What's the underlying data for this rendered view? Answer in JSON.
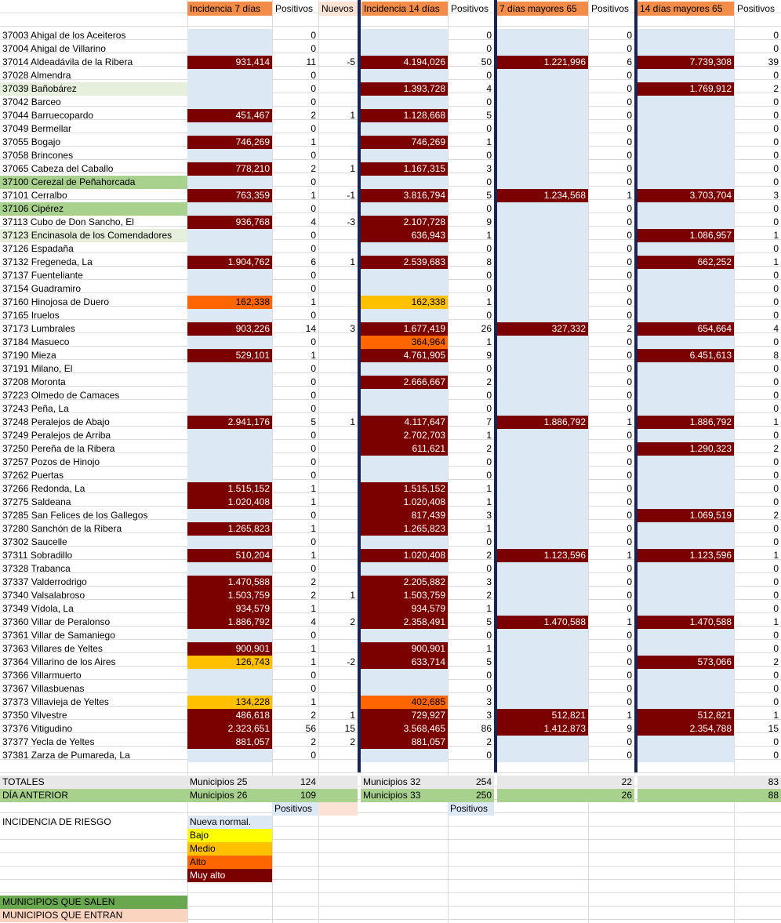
{
  "columns": {
    "inc7": "Incidencia 7 días",
    "pos7": "Positivos",
    "nuevos": "Nuevos",
    "inc14": "Incidencia 14 días",
    "pos14": "Positivos",
    "inc7m65": "7 días mayores 65",
    "pos7m65": "Positivos",
    "inc14m65": "14 días mayores 65",
    "pos14m65": "Positivos"
  },
  "colors": {
    "nueva": "#dce9f5",
    "bajo": "#ffff00",
    "medio": "#ffc000",
    "alto": "#ff6600",
    "muy_alto": "#7b0000",
    "salen": "#6aa84f",
    "entran": "#fbd4c0"
  },
  "rows": [
    {
      "name": "37003 Ahigal de los Aceiteros",
      "hl": "",
      "i7": "",
      "i7c": "nueva",
      "p7": "0",
      "nv": "",
      "i14": "",
      "i14c": "nueva",
      "p14": "0",
      "m7": "",
      "m7c": "nueva",
      "mp7": "0",
      "m14": "",
      "m14c": "nueva",
      "mp14": "0"
    },
    {
      "name": "37004 Ahigal de Villarino",
      "hl": "",
      "i7": "",
      "i7c": "nueva",
      "p7": "0",
      "nv": "",
      "i14": "",
      "i14c": "nueva",
      "p14": "0",
      "m7": "",
      "m7c": "nueva",
      "mp7": "0",
      "m14": "",
      "m14c": "nueva",
      "mp14": "0"
    },
    {
      "name": "37014 Aldeadávila de la Ribera",
      "hl": "",
      "i7": "931,414",
      "i7c": "muy_alto",
      "p7": "11",
      "nv": "-5",
      "i14": "4.194,026",
      "i14c": "muy_alto",
      "p14": "50",
      "m7": "1.221,996",
      "m7c": "muy_alto",
      "mp7": "6",
      "m14": "7.739,308",
      "m14c": "muy_alto",
      "mp14": "39"
    },
    {
      "name": "37028 Almendra",
      "hl": "",
      "i7": "",
      "i7c": "nueva",
      "p7": "0",
      "nv": "",
      "i14": "",
      "i14c": "nueva",
      "p14": "0",
      "m7": "",
      "m7c": "nueva",
      "mp7": "0",
      "m14": "",
      "m14c": "nueva",
      "mp14": "0"
    },
    {
      "name": "37039 Bañobárez",
      "hl": "lg",
      "i7": "",
      "i7c": "nueva",
      "p7": "0",
      "nv": "",
      "i14": "1.393,728",
      "i14c": "muy_alto",
      "p14": "4",
      "m7": "",
      "m7c": "nueva",
      "mp7": "0",
      "m14": "1.769,912",
      "m14c": "muy_alto",
      "mp14": "2"
    },
    {
      "name": "37042 Barceo",
      "hl": "",
      "i7": "",
      "i7c": "nueva",
      "p7": "0",
      "nv": "",
      "i14": "",
      "i14c": "nueva",
      "p14": "0",
      "m7": "",
      "m7c": "nueva",
      "mp7": "0",
      "m14": "",
      "m14c": "nueva",
      "mp14": "0"
    },
    {
      "name": "37044 Barruecopardo",
      "hl": "",
      "i7": "451,467",
      "i7c": "muy_alto",
      "p7": "2",
      "nv": "1",
      "i14": "1.128,668",
      "i14c": "muy_alto",
      "p14": "5",
      "m7": "",
      "m7c": "nueva",
      "mp7": "0",
      "m14": "",
      "m14c": "nueva",
      "mp14": "0"
    },
    {
      "name": "37049 Bermellar",
      "hl": "",
      "i7": "",
      "i7c": "nueva",
      "p7": "0",
      "nv": "",
      "i14": "",
      "i14c": "nueva",
      "p14": "0",
      "m7": "",
      "m7c": "nueva",
      "mp7": "0",
      "m14": "",
      "m14c": "nueva",
      "mp14": "0"
    },
    {
      "name": "37055 Bogajo",
      "hl": "",
      "i7": "746,269",
      "i7c": "muy_alto",
      "p7": "1",
      "nv": "",
      "i14": "746,269",
      "i14c": "muy_alto",
      "p14": "1",
      "m7": "",
      "m7c": "nueva",
      "mp7": "0",
      "m14": "",
      "m14c": "nueva",
      "mp14": "0"
    },
    {
      "name": "37058 Brincones",
      "hl": "",
      "i7": "",
      "i7c": "nueva",
      "p7": "0",
      "nv": "",
      "i14": "",
      "i14c": "nueva",
      "p14": "0",
      "m7": "",
      "m7c": "nueva",
      "mp7": "0",
      "m14": "",
      "m14c": "nueva",
      "mp14": "0"
    },
    {
      "name": "37065 Cabeza del Caballo",
      "hl": "",
      "i7": "778,210",
      "i7c": "muy_alto",
      "p7": "2",
      "nv": "1",
      "i14": "1.167,315",
      "i14c": "muy_alto",
      "p14": "3",
      "m7": "",
      "m7c": "nueva",
      "mp7": "0",
      "m14": "",
      "m14c": "nueva",
      "mp14": "0"
    },
    {
      "name": "37100 Cerezal de Peñahorcada",
      "hl": "gg",
      "i7": "",
      "i7c": "nueva",
      "p7": "0",
      "nv": "",
      "i14": "",
      "i14c": "nueva",
      "p14": "0",
      "m7": "",
      "m7c": "nueva",
      "mp7": "0",
      "m14": "",
      "m14c": "nueva",
      "mp14": "0"
    },
    {
      "name": "37101 Cerralbo",
      "hl": "",
      "i7": "763,359",
      "i7c": "muy_alto",
      "p7": "1",
      "nv": "-1",
      "i14": "3.816,794",
      "i14c": "muy_alto",
      "p14": "5",
      "m7": "1.234,568",
      "m7c": "muy_alto",
      "mp7": "1",
      "m14": "3.703,704",
      "m14c": "muy_alto",
      "mp14": "3"
    },
    {
      "name": "37106 Cipérez",
      "hl": "gg",
      "i7": "",
      "i7c": "nueva",
      "p7": "0",
      "nv": "",
      "i14": "",
      "i14c": "nueva",
      "p14": "0",
      "m7": "",
      "m7c": "nueva",
      "mp7": "0",
      "m14": "",
      "m14c": "nueva",
      "mp14": "0"
    },
    {
      "name": "37113 Cubo de Don Sancho, El",
      "hl": "",
      "i7": "936,768",
      "i7c": "muy_alto",
      "p7": "4",
      "nv": "-3",
      "i14": "2.107,728",
      "i14c": "muy_alto",
      "p14": "9",
      "m7": "",
      "m7c": "nueva",
      "mp7": "0",
      "m14": "",
      "m14c": "nueva",
      "mp14": "0"
    },
    {
      "name": "37123 Encinasola de los Comendadores",
      "hl": "lg",
      "i7": "",
      "i7c": "nueva",
      "p7": "0",
      "nv": "",
      "i14": "636,943",
      "i14c": "muy_alto",
      "p14": "1",
      "m7": "",
      "m7c": "nueva",
      "mp7": "0",
      "m14": "1.086,957",
      "m14c": "muy_alto",
      "mp14": "1"
    },
    {
      "name": "37126 Espadaña",
      "hl": "",
      "i7": "",
      "i7c": "nueva",
      "p7": "0",
      "nv": "",
      "i14": "",
      "i14c": "nueva",
      "p14": "0",
      "m7": "",
      "m7c": "nueva",
      "mp7": "0",
      "m14": "",
      "m14c": "nueva",
      "mp14": "0"
    },
    {
      "name": "37132 Fregeneda, La",
      "hl": "",
      "i7": "1.904,762",
      "i7c": "muy_alto",
      "p7": "6",
      "nv": "1",
      "i14": "2.539,683",
      "i14c": "muy_alto",
      "p14": "8",
      "m7": "",
      "m7c": "nueva",
      "mp7": "0",
      "m14": "662,252",
      "m14c": "muy_alto",
      "mp14": "1"
    },
    {
      "name": "37137 Fuenteliante",
      "hl": "",
      "i7": "",
      "i7c": "nueva",
      "p7": "0",
      "nv": "",
      "i14": "",
      "i14c": "nueva",
      "p14": "0",
      "m7": "",
      "m7c": "nueva",
      "mp7": "0",
      "m14": "",
      "m14c": "nueva",
      "mp14": "0"
    },
    {
      "name": "37154 Guadramiro",
      "hl": "",
      "i7": "",
      "i7c": "nueva",
      "p7": "0",
      "nv": "",
      "i14": "",
      "i14c": "nueva",
      "p14": "0",
      "m7": "",
      "m7c": "nueva",
      "mp7": "0",
      "m14": "",
      "m14c": "nueva",
      "mp14": "0"
    },
    {
      "name": "37160 Hinojosa de Duero",
      "hl": "",
      "i7": "162,338",
      "i7c": "alto",
      "p7": "1",
      "nv": "",
      "i14": "162,338",
      "i14c": "medio",
      "p14": "1",
      "m7": "",
      "m7c": "nueva",
      "mp7": "0",
      "m14": "",
      "m14c": "nueva",
      "mp14": "0"
    },
    {
      "name": "37165 Iruelos",
      "hl": "",
      "i7": "",
      "i7c": "nueva",
      "p7": "0",
      "nv": "",
      "i14": "",
      "i14c": "nueva",
      "p14": "0",
      "m7": "",
      "m7c": "nueva",
      "mp7": "0",
      "m14": "",
      "m14c": "nueva",
      "mp14": "0"
    },
    {
      "name": "37173 Lumbrales",
      "hl": "",
      "i7": "903,226",
      "i7c": "muy_alto",
      "p7": "14",
      "nv": "3",
      "i14": "1.677,419",
      "i14c": "muy_alto",
      "p14": "26",
      "m7": "327,332",
      "m7c": "muy_alto",
      "mp7": "2",
      "m14": "654,664",
      "m14c": "muy_alto",
      "mp14": "4"
    },
    {
      "name": "37184 Masueco",
      "hl": "",
      "i7": "",
      "i7c": "nueva",
      "p7": "0",
      "nv": "",
      "i14": "364,964",
      "i14c": "alto",
      "p14": "1",
      "m7": "",
      "m7c": "nueva",
      "mp7": "0",
      "m14": "",
      "m14c": "nueva",
      "mp14": "0"
    },
    {
      "name": "37190 Mieza",
      "hl": "",
      "i7": "529,101",
      "i7c": "muy_alto",
      "p7": "1",
      "nv": "",
      "i14": "4.761,905",
      "i14c": "muy_alto",
      "p14": "9",
      "m7": "",
      "m7c": "nueva",
      "mp7": "0",
      "m14": "6.451,613",
      "m14c": "muy_alto",
      "mp14": "8"
    },
    {
      "name": "37191 Milano, El",
      "hl": "",
      "i7": "",
      "i7c": "nueva",
      "p7": "0",
      "nv": "",
      "i14": "",
      "i14c": "nueva",
      "p14": "0",
      "m7": "",
      "m7c": "nueva",
      "mp7": "0",
      "m14": "",
      "m14c": "nueva",
      "mp14": "0"
    },
    {
      "name": "37208 Moronta",
      "hl": "",
      "i7": "",
      "i7c": "nueva",
      "p7": "0",
      "nv": "",
      "i14": "2.666,667",
      "i14c": "muy_alto",
      "p14": "2",
      "m7": "",
      "m7c": "nueva",
      "mp7": "0",
      "m14": "",
      "m14c": "nueva",
      "mp14": "0"
    },
    {
      "name": "37223 Olmedo de Camaces",
      "hl": "",
      "i7": "",
      "i7c": "nueva",
      "p7": "0",
      "nv": "",
      "i14": "",
      "i14c": "nueva",
      "p14": "0",
      "m7": "",
      "m7c": "nueva",
      "mp7": "0",
      "m14": "",
      "m14c": "nueva",
      "mp14": "0"
    },
    {
      "name": "37243 Peña, La",
      "hl": "",
      "i7": "",
      "i7c": "nueva",
      "p7": "0",
      "nv": "",
      "i14": "",
      "i14c": "nueva",
      "p14": "0",
      "m7": "",
      "m7c": "nueva",
      "mp7": "0",
      "m14": "",
      "m14c": "nueva",
      "mp14": "0"
    },
    {
      "name": "37248 Peralejos de Abajo",
      "hl": "",
      "i7": "2.941,176",
      "i7c": "muy_alto",
      "p7": "5",
      "nv": "1",
      "i14": "4.117,647",
      "i14c": "muy_alto",
      "p14": "7",
      "m7": "1.886,792",
      "m7c": "muy_alto",
      "mp7": "1",
      "m14": "1.886,792",
      "m14c": "muy_alto",
      "mp14": "1"
    },
    {
      "name": "37249 Peralejos de Arriba",
      "hl": "",
      "i7": "",
      "i7c": "nueva",
      "p7": "0",
      "nv": "",
      "i14": "2.702,703",
      "i14c": "muy_alto",
      "p14": "1",
      "m7": "",
      "m7c": "nueva",
      "mp7": "0",
      "m14": "",
      "m14c": "nueva",
      "mp14": "0"
    },
    {
      "name": "37250 Pereña de la Ribera",
      "hl": "",
      "i7": "",
      "i7c": "nueva",
      "p7": "0",
      "nv": "",
      "i14": "611,621",
      "i14c": "muy_alto",
      "p14": "2",
      "m7": "",
      "m7c": "nueva",
      "mp7": "0",
      "m14": "1.290,323",
      "m14c": "muy_alto",
      "mp14": "2"
    },
    {
      "name": "37257 Pozos de Hinojo",
      "hl": "",
      "i7": "",
      "i7c": "nueva",
      "p7": "0",
      "nv": "",
      "i14": "",
      "i14c": "nueva",
      "p14": "0",
      "m7": "",
      "m7c": "nueva",
      "mp7": "0",
      "m14": "",
      "m14c": "nueva",
      "mp14": "0"
    },
    {
      "name": "37262 Puertas",
      "hl": "",
      "i7": "",
      "i7c": "nueva",
      "p7": "0",
      "nv": "",
      "i14": "",
      "i14c": "nueva",
      "p14": "0",
      "m7": "",
      "m7c": "nueva",
      "mp7": "0",
      "m14": "",
      "m14c": "nueva",
      "mp14": "0"
    },
    {
      "name": "37266 Redonda, La",
      "hl": "",
      "i7": "1.515,152",
      "i7c": "muy_alto",
      "p7": "1",
      "nv": "",
      "i14": "1.515,152",
      "i14c": "muy_alto",
      "p14": "1",
      "m7": "",
      "m7c": "nueva",
      "mp7": "0",
      "m14": "",
      "m14c": "nueva",
      "mp14": "0"
    },
    {
      "name": "37275 Saldeana",
      "hl": "",
      "i7": "1.020,408",
      "i7c": "muy_alto",
      "p7": "1",
      "nv": "",
      "i14": "1.020,408",
      "i14c": "muy_alto",
      "p14": "1",
      "m7": "",
      "m7c": "nueva",
      "mp7": "0",
      "m14": "",
      "m14c": "nueva",
      "mp14": "0"
    },
    {
      "name": "37285 San Felices de los Gallegos",
      "hl": "",
      "i7": "",
      "i7c": "nueva",
      "p7": "0",
      "nv": "",
      "i14": "817,439",
      "i14c": "muy_alto",
      "p14": "3",
      "m7": "",
      "m7c": "nueva",
      "mp7": "0",
      "m14": "1.069,519",
      "m14c": "muy_alto",
      "mp14": "2"
    },
    {
      "name": "37280 Sanchón de la Ribera",
      "hl": "",
      "i7": "1.265,823",
      "i7c": "muy_alto",
      "p7": "1",
      "nv": "",
      "i14": "1.265,823",
      "i14c": "muy_alto",
      "p14": "1",
      "m7": "",
      "m7c": "nueva",
      "mp7": "0",
      "m14": "",
      "m14c": "nueva",
      "mp14": "0"
    },
    {
      "name": "37302 Saucelle",
      "hl": "",
      "i7": "",
      "i7c": "nueva",
      "p7": "0",
      "nv": "",
      "i14": "",
      "i14c": "nueva",
      "p14": "0",
      "m7": "",
      "m7c": "nueva",
      "mp7": "0",
      "m14": "",
      "m14c": "nueva",
      "mp14": "0"
    },
    {
      "name": "37311 Sobradillo",
      "hl": "",
      "i7": "510,204",
      "i7c": "muy_alto",
      "p7": "1",
      "nv": "",
      "i14": "1.020,408",
      "i14c": "muy_alto",
      "p14": "2",
      "m7": "1.123,596",
      "m7c": "muy_alto",
      "mp7": "1",
      "m14": "1.123,596",
      "m14c": "muy_alto",
      "mp14": "1"
    },
    {
      "name": "37328 Trabanca",
      "hl": "",
      "i7": "",
      "i7c": "nueva",
      "p7": "0",
      "nv": "",
      "i14": "",
      "i14c": "nueva",
      "p14": "0",
      "m7": "",
      "m7c": "nueva",
      "mp7": "0",
      "m14": "",
      "m14c": "nueva",
      "mp14": "0"
    },
    {
      "name": "37337 Valderrodrigo",
      "hl": "",
      "i7": "1.470,588",
      "i7c": "muy_alto",
      "p7": "2",
      "nv": "",
      "i14": "2.205,882",
      "i14c": "muy_alto",
      "p14": "3",
      "m7": "",
      "m7c": "nueva",
      "mp7": "0",
      "m14": "",
      "m14c": "nueva",
      "mp14": "0"
    },
    {
      "name": "37340 Valsalabroso",
      "hl": "",
      "i7": "1.503,759",
      "i7c": "muy_alto",
      "p7": "2",
      "nv": "1",
      "i14": "1.503,759",
      "i14c": "muy_alto",
      "p14": "2",
      "m7": "",
      "m7c": "nueva",
      "mp7": "0",
      "m14": "",
      "m14c": "nueva",
      "mp14": "0"
    },
    {
      "name": "37349 Vídola, La",
      "hl": "",
      "i7": "934,579",
      "i7c": "muy_alto",
      "p7": "1",
      "nv": "",
      "i14": "934,579",
      "i14c": "muy_alto",
      "p14": "1",
      "m7": "",
      "m7c": "nueva",
      "mp7": "0",
      "m14": "",
      "m14c": "nueva",
      "mp14": "0"
    },
    {
      "name": "37360 Villar de Peralonso",
      "hl": "",
      "i7": "1.886,792",
      "i7c": "muy_alto",
      "p7": "4",
      "nv": "2",
      "i14": "2.358,491",
      "i14c": "muy_alto",
      "p14": "5",
      "m7": "1.470,588",
      "m7c": "muy_alto",
      "mp7": "1",
      "m14": "1.470,588",
      "m14c": "muy_alto",
      "mp14": "1"
    },
    {
      "name": "37361 Villar de Samaniego",
      "hl": "",
      "i7": "",
      "i7c": "nueva",
      "p7": "0",
      "nv": "",
      "i14": "",
      "i14c": "nueva",
      "p14": "0",
      "m7": "",
      "m7c": "nueva",
      "mp7": "0",
      "m14": "",
      "m14c": "nueva",
      "mp14": "0"
    },
    {
      "name": "37363 Villares de Yeltes",
      "hl": "",
      "i7": "900,901",
      "i7c": "muy_alto",
      "p7": "1",
      "nv": "",
      "i14": "900,901",
      "i14c": "muy_alto",
      "p14": "1",
      "m7": "",
      "m7c": "nueva",
      "mp7": "0",
      "m14": "",
      "m14c": "nueva",
      "mp14": "0"
    },
    {
      "name": "37364 Villarino de los Aires",
      "hl": "",
      "i7": "126,743",
      "i7c": "medio",
      "p7": "1",
      "nv": "-2",
      "i14": "633,714",
      "i14c": "muy_alto",
      "p14": "5",
      "m7": "",
      "m7c": "nueva",
      "mp7": "0",
      "m14": "573,066",
      "m14c": "muy_alto",
      "mp14": "2"
    },
    {
      "name": "37366 Villarmuerto",
      "hl": "",
      "i7": "",
      "i7c": "nueva",
      "p7": "0",
      "nv": "",
      "i14": "",
      "i14c": "nueva",
      "p14": "0",
      "m7": "",
      "m7c": "nueva",
      "mp7": "0",
      "m14": "",
      "m14c": "nueva",
      "mp14": "0"
    },
    {
      "name": "37367 Villasbuenas",
      "hl": "",
      "i7": "",
      "i7c": "nueva",
      "p7": "0",
      "nv": "",
      "i14": "",
      "i14c": "nueva",
      "p14": "0",
      "m7": "",
      "m7c": "nueva",
      "mp7": "0",
      "m14": "",
      "m14c": "nueva",
      "mp14": "0"
    },
    {
      "name": "37373 Villavieja de Yeltes",
      "hl": "",
      "i7": "134,228",
      "i7c": "medio",
      "p7": "1",
      "nv": "",
      "i14": "402,685",
      "i14c": "alto",
      "p14": "3",
      "m7": "",
      "m7c": "nueva",
      "mp7": "0",
      "m14": "",
      "m14c": "nueva",
      "mp14": "0"
    },
    {
      "name": "37350 Vilvestre",
      "hl": "",
      "i7": "486,618",
      "i7c": "muy_alto",
      "p7": "2",
      "nv": "1",
      "i14": "729,927",
      "i14c": "muy_alto",
      "p14": "3",
      "m7": "512,821",
      "m7c": "muy_alto",
      "mp7": "1",
      "m14": "512,821",
      "m14c": "muy_alto",
      "mp14": "1"
    },
    {
      "name": "37376 Vitigudino",
      "hl": "",
      "i7": "2.323,651",
      "i7c": "muy_alto",
      "p7": "56",
      "nv": "15",
      "i14": "3.568,465",
      "i14c": "muy_alto",
      "p14": "86",
      "m7": "1.412,873",
      "m7c": "muy_alto",
      "mp7": "9",
      "m14": "2.354,788",
      "m14c": "muy_alto",
      "mp14": "15"
    },
    {
      "name": "37377 Yecla de Yeltes",
      "hl": "",
      "i7": "881,057",
      "i7c": "muy_alto",
      "p7": "2",
      "nv": "2",
      "i14": "881,057",
      "i14c": "muy_alto",
      "p14": "2",
      "m7": "",
      "m7c": "nueva",
      "mp7": "0",
      "m14": "",
      "m14c": "nueva",
      "mp14": "0"
    },
    {
      "name": "37381 Zarza de Pumareda, La",
      "hl": "",
      "i7": "",
      "i7c": "nueva",
      "p7": "0",
      "nv": "",
      "i14": "",
      "i14c": "nueva",
      "p14": "0",
      "m7": "",
      "m7c": "nueva",
      "mp7": "0",
      "m14": "",
      "m14c": "nueva",
      "mp14": "0"
    }
  ],
  "totales": {
    "label": "TOTALES",
    "mun7": "Municipios 25",
    "p7": "124",
    "mun14": "Municipios 32",
    "p14": "254",
    "mp7": "22",
    "mp14": "83"
  },
  "anterior": {
    "label": "DÍA ANTERIOR",
    "mun7": "Municipios 26",
    "p7": "109",
    "mun14": "Municipios 33",
    "p14": "250",
    "mp7": "26",
    "mp14": "88"
  },
  "positivos_label": "Positivos",
  "legend": {
    "title": "INCIDENCIA DE RIESGO",
    "nueva": "Nueva normal.",
    "bajo": "Bajo",
    "medio": "Medio",
    "alto": "Alto",
    "muy_alto": "Muy alto"
  },
  "salen": "MUNICIPIOS QUE SALEN",
  "entran": "MUNICIPIOS QUE ENTRAN"
}
